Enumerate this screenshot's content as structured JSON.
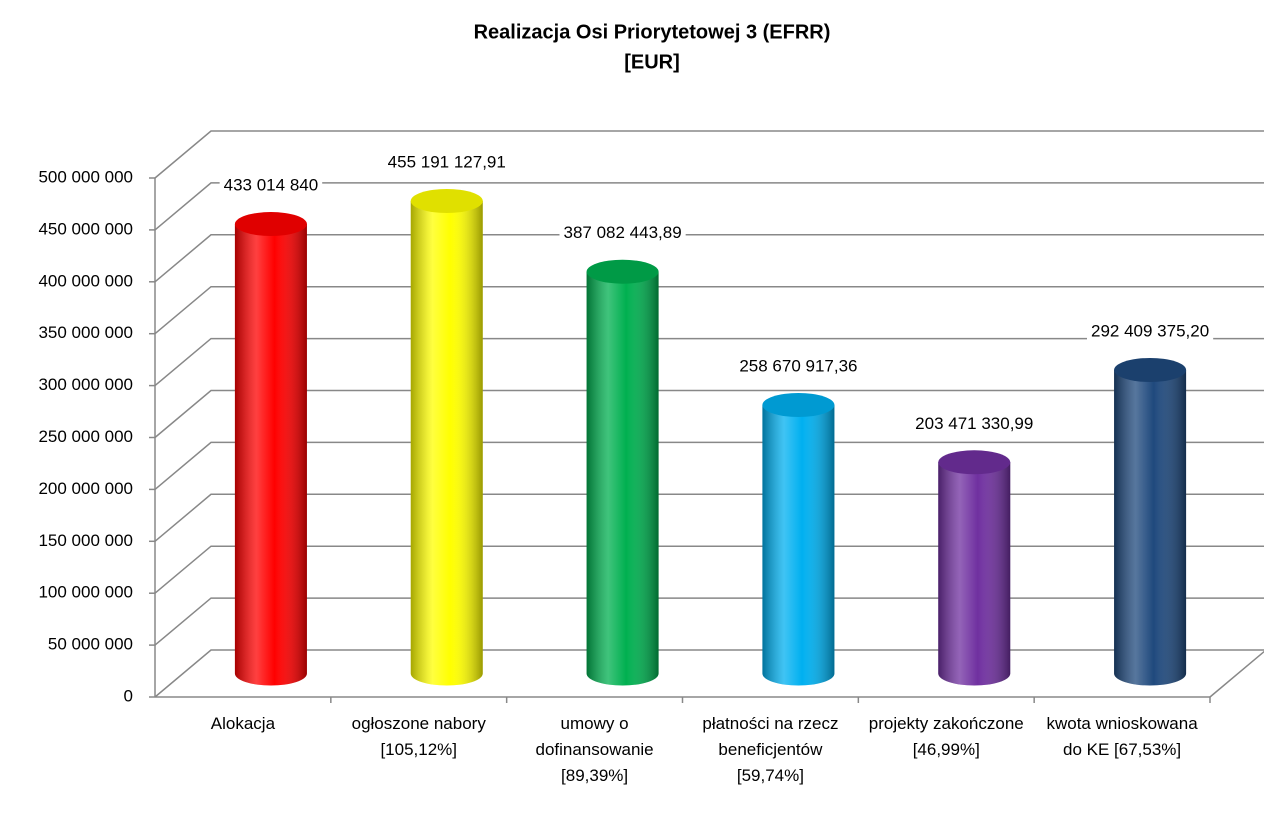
{
  "chart_data": {
    "type": "bar3d",
    "title": "Realizacja Osi Priorytetowej 3  (EFRR)",
    "subtitle": "[EUR]",
    "categories": [
      "Alokacja",
      "ogłoszone nabory [105,12%]",
      "umowy o dofinansowanie [89,39%]",
      "płatności na rzecz beneficjentów [59,74%]",
      "projekty zakończone [46,99%]",
      "kwota wnioskowana do KE [67,53%]"
    ],
    "values": [
      433014840,
      455191127.91,
      387082443.89,
      258670917.36,
      203471330.99,
      292409375.2
    ],
    "value_labels": [
      "433 014 840",
      "455 191 127,91",
      "387 082 443,89",
      "258 670 917,36",
      "203 471 330,99",
      "292 409 375,20"
    ],
    "colors": [
      "#ff0000",
      "#ffff00",
      "#00b050",
      "#00b0f0",
      "#7030a0",
      "#1f497d"
    ],
    "ylim": [
      0,
      500000000
    ],
    "yticks": [
      {
        "value": 0,
        "label": "0"
      },
      {
        "value": 50000000,
        "label": "50 000 000"
      },
      {
        "value": 100000000,
        "label": "100 000 000"
      },
      {
        "value": 150000000,
        "label": "150 000 000"
      },
      {
        "value": 200000000,
        "label": "200 000 000"
      },
      {
        "value": 250000000,
        "label": "250 000 000"
      },
      {
        "value": 300000000,
        "label": "300 000 000"
      },
      {
        "value": 350000000,
        "label": "350 000 000"
      },
      {
        "value": 400000000,
        "label": "400 000 000"
      },
      {
        "value": 450000000,
        "label": "450 000 000"
      },
      {
        "value": 500000000,
        "label": "500 000 000"
      }
    ],
    "grid": true
  }
}
